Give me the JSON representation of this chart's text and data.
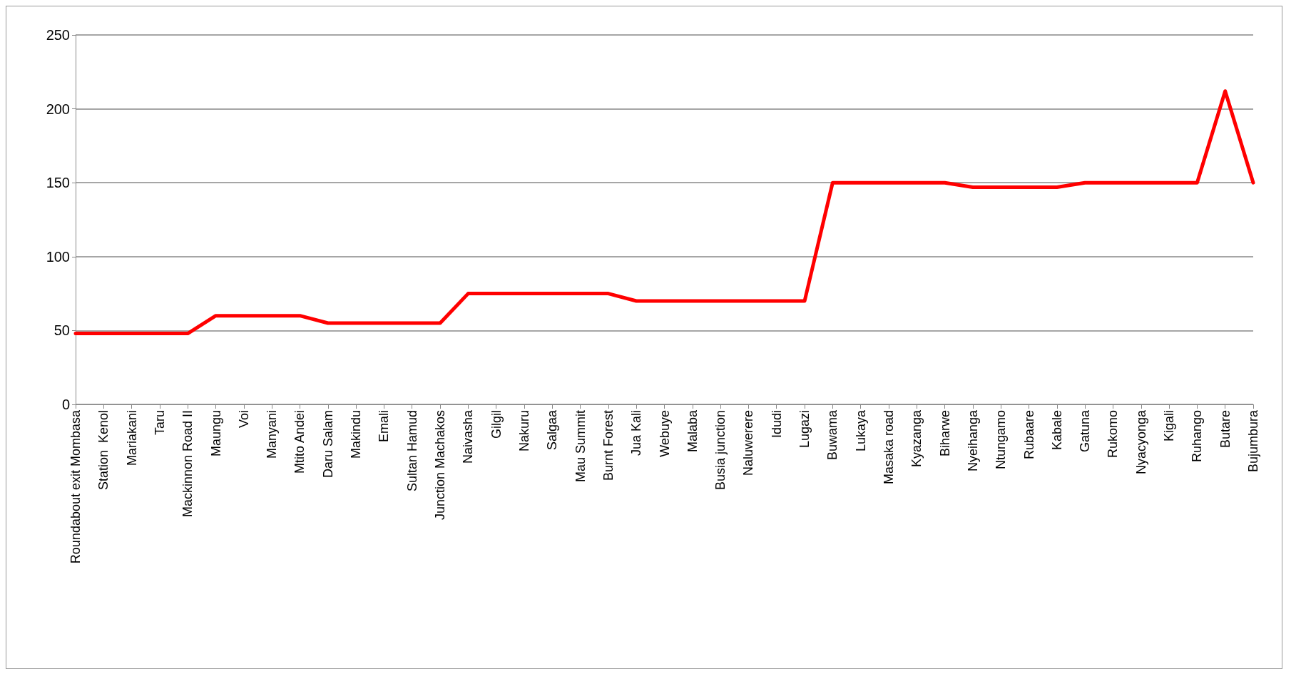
{
  "chart_data": {
    "type": "line",
    "categories": [
      "Roundabout exit Mombasa",
      "Station  Kenol",
      "Mariakani",
      "Taru",
      "Mackinnon Road II",
      "Maungu",
      "Voi",
      "Manyani",
      "Mtito Andei",
      "Daru Salam",
      "Makindu",
      "Emali",
      "Sultan Hamud",
      "Junction Machakos",
      "Naivasha",
      "Gilgil",
      "Nakuru",
      "Salgaa",
      "Mau Summit",
      "Burnt Forest",
      "Jua Kali",
      "Webuye",
      "Malaba",
      "Busia junction",
      "Naluwerere",
      "Idudi",
      "Lugazi",
      "Buwama",
      "Lukaya",
      "Masaka road",
      "Kyazanga",
      "Biharwe",
      "Nyeihanga",
      "Ntungamo",
      "Rubaare",
      "Kabale",
      "Gatuna",
      "Rukomo",
      "Nyacyonga",
      "Kigali",
      "Ruhango",
      "Butare",
      "Bujumbura"
    ],
    "series": [
      {
        "color": "#ff0000",
        "values": [
          48,
          48,
          48,
          48,
          48,
          60,
          60,
          60,
          60,
          55,
          55,
          55,
          55,
          55,
          75,
          75,
          75,
          75,
          75,
          75,
          70,
          70,
          70,
          70,
          70,
          70,
          70,
          150,
          150,
          150,
          150,
          150,
          147,
          147,
          147,
          147,
          150,
          150,
          150,
          150,
          150,
          212,
          150
        ]
      }
    ],
    "ylim": [
      0,
      250
    ],
    "yticks": [
      0,
      50,
      100,
      150,
      200,
      250
    ],
    "grid": "y",
    "marker": "none",
    "line_style": "solid"
  }
}
